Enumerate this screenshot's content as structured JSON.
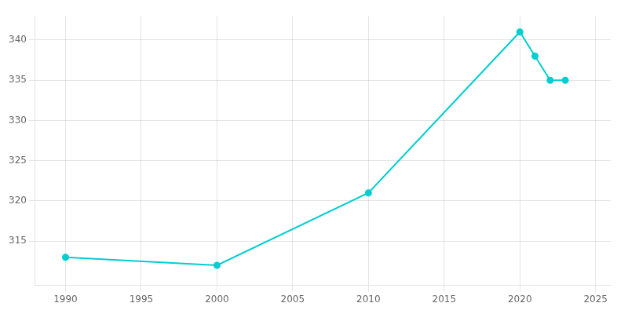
{
  "chart_data": {
    "type": "line",
    "x": [
      1990,
      2000,
      2010,
      2020,
      2021,
      2022,
      2023
    ],
    "values": [
      313,
      312,
      321,
      341,
      338,
      335,
      335
    ],
    "color": "#00CED1",
    "marker": "circle",
    "xlim": [
      1988,
      2026
    ],
    "ylim": [
      309.5,
      343
    ],
    "xticks": [
      1990,
      1995,
      2000,
      2005,
      2010,
      2015,
      2020,
      2025
    ],
    "yticks": [
      315,
      320,
      325,
      330,
      335,
      340
    ],
    "grid": true
  }
}
